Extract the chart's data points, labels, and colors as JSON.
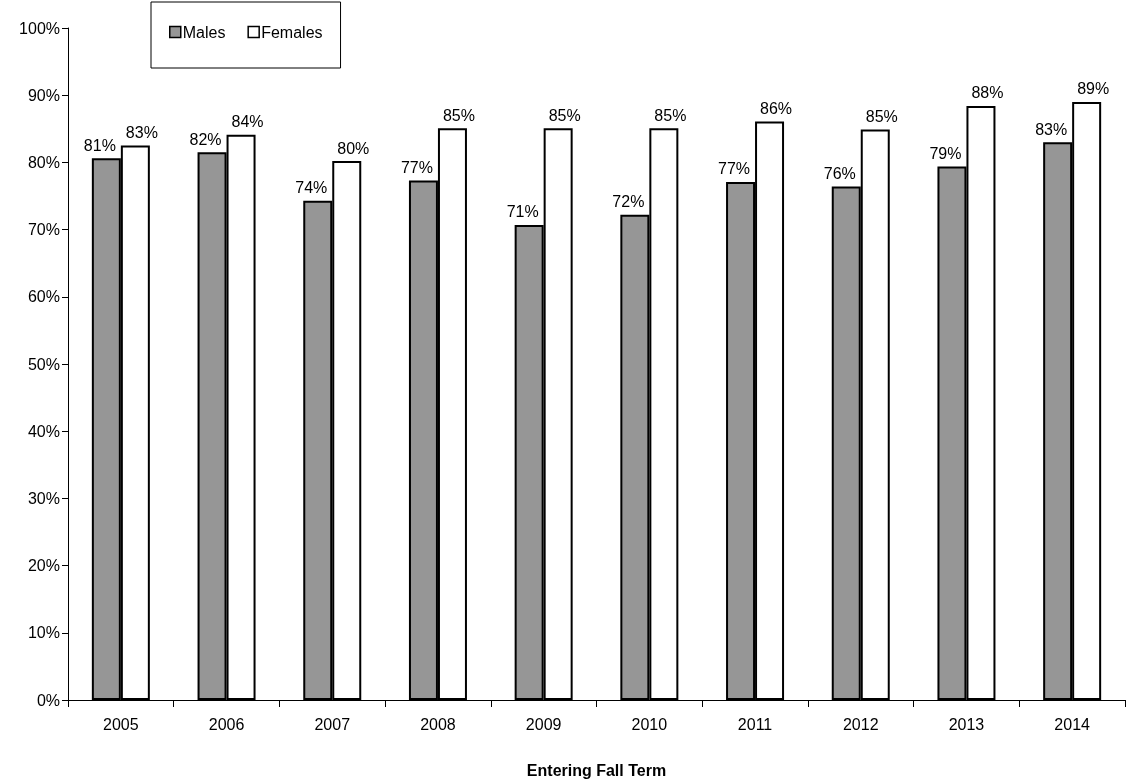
{
  "chart_data": {
    "type": "bar",
    "xlabel": "Entering Fall Term",
    "categories": [
      "2005",
      "2006",
      "2007",
      "2008",
      "2009",
      "2010",
      "2011",
      "2012",
      "2013",
      "2014"
    ],
    "series": [
      {
        "name": "Males",
        "color": "#969696",
        "values": [
          80.6,
          81.5,
          74.3,
          77.3,
          70.7,
          72.2,
          77.1,
          76.4,
          79.4,
          83.0
        ],
        "value_labels": [
          "81%",
          "82%",
          "74%",
          "77%",
          "71%",
          "72%",
          "77%",
          "76%",
          "79%",
          "83%"
        ]
      },
      {
        "name": "Females",
        "color": "#ffffff",
        "values": [
          82.5,
          84.1,
          80.2,
          85.1,
          85.1,
          85.1,
          86.1,
          84.9,
          88.4,
          89.0
        ],
        "value_labels": [
          "83%",
          "84%",
          "80%",
          "85%",
          "85%",
          "85%",
          "86%",
          "85%",
          "88%",
          "89%"
        ]
      }
    ],
    "ylim": [
      0,
      100
    ],
    "yticks": [
      {
        "value": 0,
        "label": "0%"
      },
      {
        "value": 10,
        "label": "10%"
      },
      {
        "value": 20,
        "label": "20%"
      },
      {
        "value": 30,
        "label": "30%"
      },
      {
        "value": 40,
        "label": "40%"
      },
      {
        "value": 50,
        "label": "50%"
      },
      {
        "value": 60,
        "label": "60%"
      },
      {
        "value": 70,
        "label": "70%"
      },
      {
        "value": 80,
        "label": "80%"
      },
      {
        "value": 90,
        "label": "90%"
      },
      {
        "value": 100,
        "label": "100%"
      }
    ],
    "grid": false,
    "legend": "top left"
  }
}
